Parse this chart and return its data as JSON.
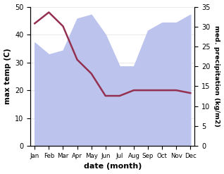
{
  "months": [
    "Jan",
    "Feb",
    "Mar",
    "Apr",
    "May",
    "Jun",
    "Jul",
    "Aug",
    "Sep",
    "Oct",
    "Nov",
    "Dec"
  ],
  "month_indices": [
    0,
    1,
    2,
    3,
    4,
    5,
    6,
    7,
    8,
    9,
    10,
    11
  ],
  "precipitation_right": [
    26,
    23,
    24,
    32,
    33,
    28,
    20,
    20,
    29,
    31,
    31,
    33
  ],
  "temperature": [
    44,
    48,
    43,
    31,
    26,
    18,
    18,
    20,
    20,
    20,
    20,
    19
  ],
  "precip_fill_color": "#bcc4ee",
  "temp_color": "#943050",
  "temp_lw": 1.8,
  "ylabel_left": "max temp (C)",
  "ylabel_right": "med. precipitation (kg/m2)",
  "xlabel": "date (month)",
  "ylim_left": [
    0,
    50
  ],
  "ylim_right": [
    0,
    35
  ],
  "yticks_left": [
    0,
    10,
    20,
    30,
    40,
    50
  ],
  "yticks_right": [
    0,
    5,
    10,
    15,
    20,
    25,
    30,
    35
  ],
  "bg_color": "#ffffff",
  "figure_bg": "#ffffff"
}
